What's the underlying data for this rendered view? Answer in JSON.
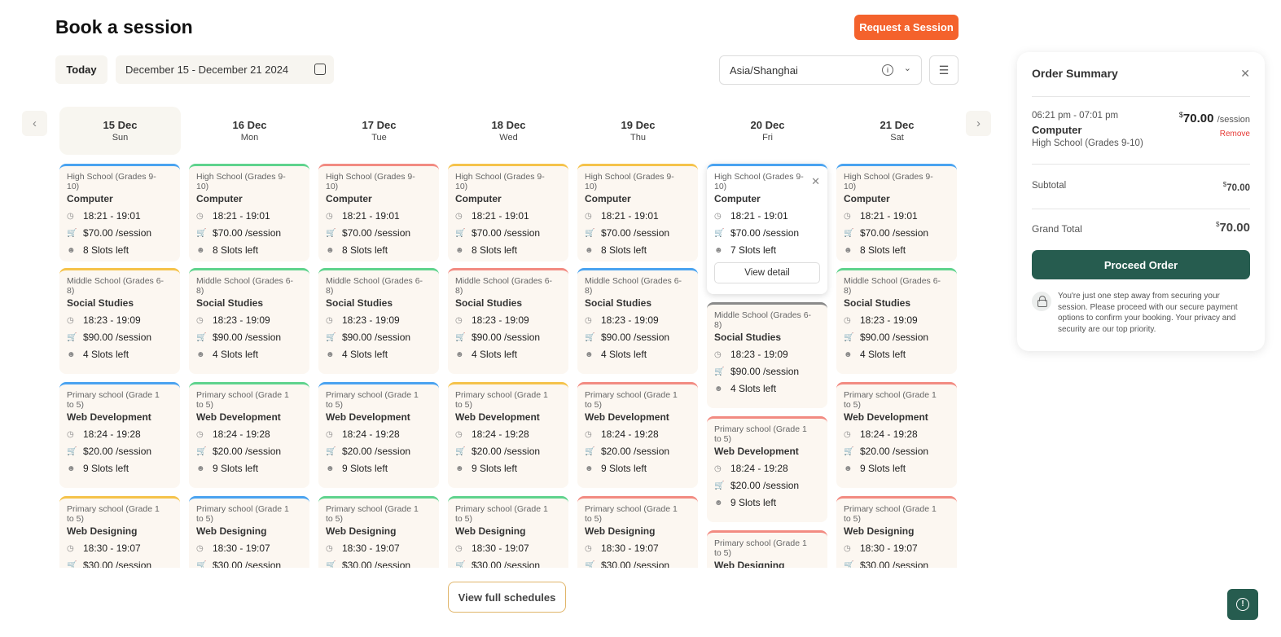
{
  "header": {
    "title": "Book a session",
    "request_label": "Request a Session"
  },
  "toolbar": {
    "today_label": "Today",
    "date_range": "December 15 - December 21 2024",
    "timezone": "Asia/Shanghai"
  },
  "colors": {
    "blue": "#4aa3f0",
    "green": "#5fd38d",
    "red": "#f28b82",
    "yellow": "#f5c34b",
    "gray": "#8a8a8a",
    "accent": "#f4622c",
    "primary": "#265c4f"
  },
  "days": [
    {
      "date": "15 Dec",
      "weekday": "Sun",
      "selected": true,
      "sessions": [
        {
          "level": "High School (Grades 9-10)",
          "subject": "Computer",
          "time": "18:21 - 19:01",
          "price": "$70.00 /session",
          "slots": "8 Slots left",
          "color": "blue"
        },
        {
          "level": "Middle School (Grades 6-8)",
          "subject": "Social Studies",
          "time": "18:23 - 19:09",
          "price": "$90.00 /session",
          "slots": "4 Slots left",
          "color": "yellow"
        },
        {
          "level": "Primary school (Grade 1 to 5)",
          "subject": "Web Development",
          "time": "18:24 - 19:28",
          "price": "$20.00 /session",
          "slots": "9 Slots left",
          "color": "blue"
        },
        {
          "level": "Primary school (Grade 1 to 5)",
          "subject": "Web Designing",
          "time": "18:30 - 19:07",
          "price": "$30.00 /session",
          "slots": "",
          "color": "yellow"
        }
      ]
    },
    {
      "date": "16 Dec",
      "weekday": "Mon",
      "sessions": [
        {
          "level": "High School (Grades 9-10)",
          "subject": "Computer",
          "time": "18:21 - 19:01",
          "price": "$70.00 /session",
          "slots": "8 Slots left",
          "color": "green"
        },
        {
          "level": "Middle School (Grades 6-8)",
          "subject": "Social Studies",
          "time": "18:23 - 19:09",
          "price": "$90.00 /session",
          "slots": "4 Slots left",
          "color": "green"
        },
        {
          "level": "Primary school (Grade 1 to 5)",
          "subject": "Web Development",
          "time": "18:24 - 19:28",
          "price": "$20.00 /session",
          "slots": "9 Slots left",
          "color": "green"
        },
        {
          "level": "Primary school (Grade 1 to 5)",
          "subject": "Web Designing",
          "time": "18:30 - 19:07",
          "price": "$30.00 /session",
          "slots": "",
          "color": "blue"
        }
      ]
    },
    {
      "date": "17 Dec",
      "weekday": "Tue",
      "sessions": [
        {
          "level": "High School (Grades 9-10)",
          "subject": "Computer",
          "time": "18:21 - 19:01",
          "price": "$70.00 /session",
          "slots": "8 Slots left",
          "color": "red"
        },
        {
          "level": "Middle School (Grades 6-8)",
          "subject": "Social Studies",
          "time": "18:23 - 19:09",
          "price": "$90.00 /session",
          "slots": "4 Slots left",
          "color": "green"
        },
        {
          "level": "Primary school (Grade 1 to 5)",
          "subject": "Web Development",
          "time": "18:24 - 19:28",
          "price": "$20.00 /session",
          "slots": "9 Slots left",
          "color": "blue"
        },
        {
          "level": "Primary school (Grade 1 to 5)",
          "subject": "Web Designing",
          "time": "18:30 - 19:07",
          "price": "$30.00 /session",
          "slots": "",
          "color": "green"
        }
      ]
    },
    {
      "date": "18 Dec",
      "weekday": "Wed",
      "sessions": [
        {
          "level": "High School (Grades 9-10)",
          "subject": "Computer",
          "time": "18:21 - 19:01",
          "price": "$70.00 /session",
          "slots": "8 Slots left",
          "color": "yellow"
        },
        {
          "level": "Middle School (Grades 6-8)",
          "subject": "Social Studies",
          "time": "18:23 - 19:09",
          "price": "$90.00 /session",
          "slots": "4 Slots left",
          "color": "red"
        },
        {
          "level": "Primary school (Grade 1 to 5)",
          "subject": "Web Development",
          "time": "18:24 - 19:28",
          "price": "$20.00 /session",
          "slots": "9 Slots left",
          "color": "yellow"
        },
        {
          "level": "Primary school (Grade 1 to 5)",
          "subject": "Web Designing",
          "time": "18:30 - 19:07",
          "price": "$30.00 /session",
          "slots": "",
          "color": "green"
        }
      ]
    },
    {
      "date": "19 Dec",
      "weekday": "Thu",
      "sessions": [
        {
          "level": "High School (Grades 9-10)",
          "subject": "Computer",
          "time": "18:21 - 19:01",
          "price": "$70.00 /session",
          "slots": "8 Slots left",
          "color": "yellow"
        },
        {
          "level": "Middle School (Grades 6-8)",
          "subject": "Social Studies",
          "time": "18:23 - 19:09",
          "price": "$90.00 /session",
          "slots": "4 Slots left",
          "color": "blue"
        },
        {
          "level": "Primary school (Grade 1 to 5)",
          "subject": "Web Development",
          "time": "18:24 - 19:28",
          "price": "$20.00 /session",
          "slots": "9 Slots left",
          "color": "red"
        },
        {
          "level": "Primary school (Grade 1 to 5)",
          "subject": "Web Designing",
          "time": "18:30 - 19:07",
          "price": "$30.00 /session",
          "slots": "",
          "color": "red"
        }
      ]
    },
    {
      "date": "20 Dec",
      "weekday": "Fri",
      "sessions": [
        {
          "level": "High School (Grades 9-10)",
          "subject": "Computer",
          "time": "18:21 - 19:01",
          "price": "$70.00 /session",
          "slots": "7 Slots left",
          "color": "blue",
          "active": true,
          "detail_label": "View detail"
        },
        {
          "level": "Middle School (Grades 6-8)",
          "subject": "Social Studies",
          "time": "18:23 - 19:09",
          "price": "$90.00 /session",
          "slots": "4 Slots left",
          "color": "gray"
        },
        {
          "level": "Primary school (Grade 1 to 5)",
          "subject": "Web Development",
          "time": "18:24 - 19:28",
          "price": "$20.00 /session",
          "slots": "9 Slots left",
          "color": "red"
        },
        {
          "level": "Primary school (Grade 1 to 5)",
          "subject": "Web Designing",
          "time": "",
          "price": "",
          "slots": "",
          "color": "red"
        }
      ]
    },
    {
      "date": "21 Dec",
      "weekday": "Sat",
      "sessions": [
        {
          "level": "High School (Grades 9-10)",
          "subject": "Computer",
          "time": "18:21 - 19:01",
          "price": "$70.00 /session",
          "slots": "8 Slots left",
          "color": "blue"
        },
        {
          "level": "Middle School (Grades 6-8)",
          "subject": "Social Studies",
          "time": "18:23 - 19:09",
          "price": "$90.00 /session",
          "slots": "4 Slots left",
          "color": "green"
        },
        {
          "level": "Primary school (Grade 1 to 5)",
          "subject": "Web Development",
          "time": "18:24 - 19:28",
          "price": "$20.00 /session",
          "slots": "9 Slots left",
          "color": "red"
        },
        {
          "level": "Primary school (Grade 1 to 5)",
          "subject": "Web Designing",
          "time": "18:30 - 19:07",
          "price": "$30.00 /session",
          "slots": "",
          "color": "red"
        }
      ]
    }
  ],
  "view_full_label": "View full schedules",
  "order": {
    "title": "Order Summary",
    "item": {
      "time": "06:21 pm - 07:01 pm",
      "subject": "Computer",
      "level": "High School (Grades 9-10)",
      "currency": "$",
      "price": "70.00",
      "unit": "/session",
      "remove_label": "Remove"
    },
    "subtotal_label": "Subtotal",
    "subtotal": "70.00",
    "grand_total_label": "Grand Total",
    "grand_total": "70.00",
    "proceed_label": "Proceed Order",
    "note": "You're just one step away from securing your session. Please proceed with our secure payment options to confirm your booking. Your privacy and security are our top priority."
  }
}
